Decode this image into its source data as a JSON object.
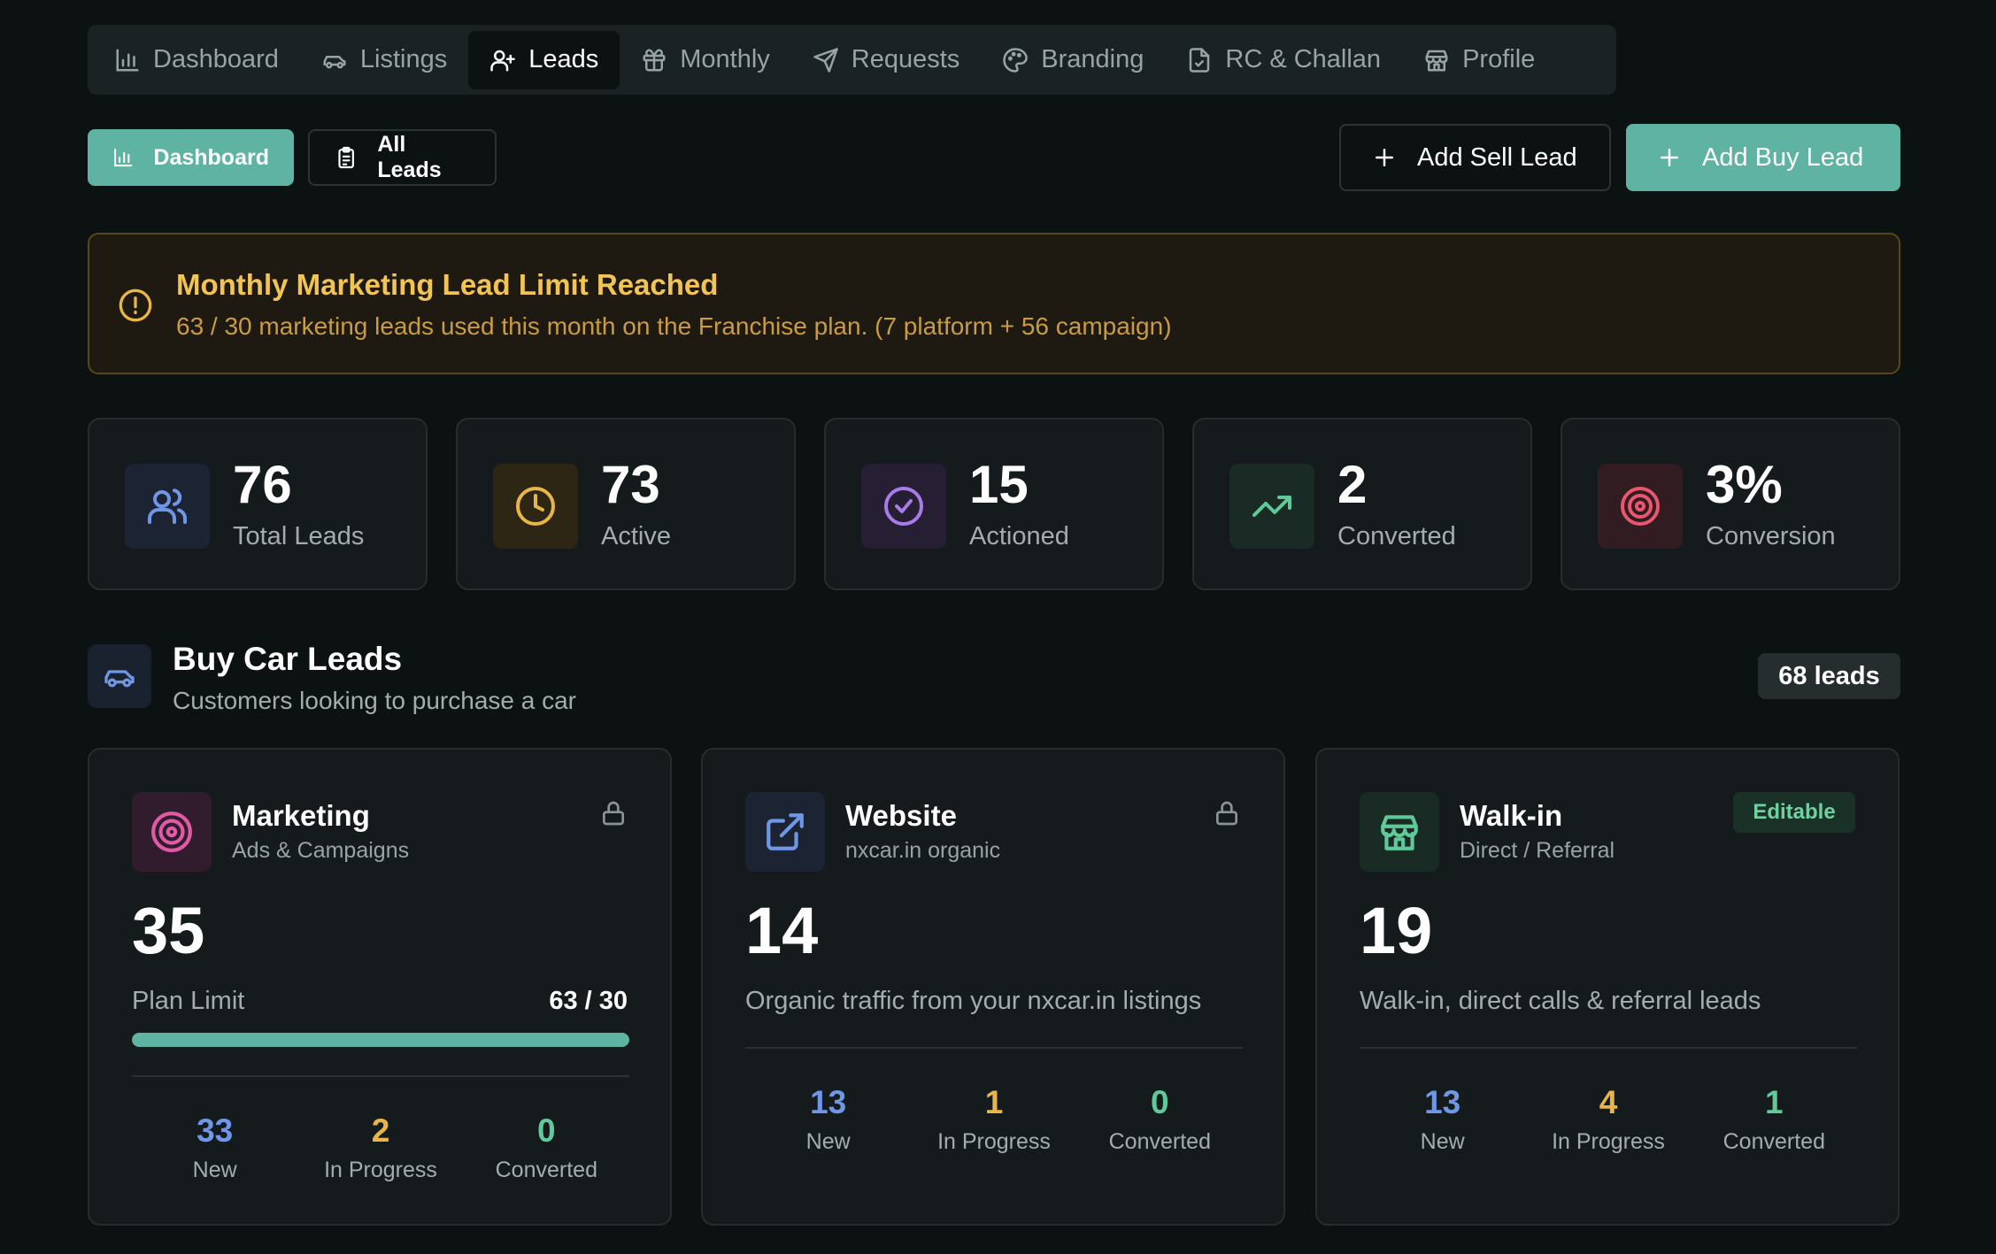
{
  "nav": {
    "tabs": [
      {
        "label": "Dashboard",
        "icon": "bar-chart-icon",
        "active": false
      },
      {
        "label": "Listings",
        "icon": "car-icon",
        "active": false
      },
      {
        "label": "Leads",
        "icon": "user-plus-icon",
        "active": true
      },
      {
        "label": "Monthly",
        "icon": "gift-icon",
        "active": false
      },
      {
        "label": "Requests",
        "icon": "send-icon",
        "active": false
      },
      {
        "label": "Branding",
        "icon": "palette-icon",
        "active": false
      },
      {
        "label": "RC & Challan",
        "icon": "file-check-icon",
        "active": false
      },
      {
        "label": "Profile",
        "icon": "store-icon",
        "active": false
      }
    ]
  },
  "toolbar": {
    "dashboard_label": "Dashboard",
    "all_leads_label": "All Leads",
    "add_sell_label": "Add Sell Lead",
    "add_buy_label": "Add Buy Lead"
  },
  "alert": {
    "title": "Monthly Marketing Lead Limit Reached",
    "text": "63 / 30 marketing leads used this month on the Franchise plan. (7 platform + 56 campaign)"
  },
  "stats": [
    {
      "value": "76",
      "label": "Total Leads",
      "icon": "users-icon",
      "color": "#6f97e6"
    },
    {
      "value": "73",
      "label": "Active",
      "icon": "clock-icon",
      "color": "#e8b546"
    },
    {
      "value": "15",
      "label": "Actioned",
      "icon": "check-circle-icon",
      "color": "#a77be8"
    },
    {
      "value": "2",
      "label": "Converted",
      "icon": "trending-up-icon",
      "color": "#5fc99a"
    },
    {
      "value": "3%",
      "label": "Conversion",
      "icon": "target-icon",
      "color": "#e8566f"
    }
  ],
  "section": {
    "title": "Buy Car Leads",
    "subtitle": "Customers looking to purchase a car",
    "badge": "68 leads"
  },
  "cards": {
    "marketing": {
      "title": "Marketing",
      "subtitle": "Ads & Campaigns",
      "count": "35",
      "plan_label": "Plan Limit",
      "plan_value": "63 / 30",
      "progress_fraction": 1.0,
      "new": "33",
      "new_label": "New",
      "in_progress": "2",
      "in_progress_label": "In Progress",
      "converted": "0",
      "converted_label": "Converted"
    },
    "website": {
      "title": "Website",
      "subtitle": "nxcar.in organic",
      "count": "14",
      "description": "Organic traffic from your nxcar.in listings",
      "new": "13",
      "new_label": "New",
      "in_progress": "1",
      "in_progress_label": "In Progress",
      "converted": "0",
      "converted_label": "Converted"
    },
    "walkin": {
      "title": "Walk-in",
      "subtitle": "Direct / Referral",
      "badge": "Editable",
      "count": "19",
      "description": "Walk-in, direct calls & referral leads",
      "new": "13",
      "new_label": "New",
      "in_progress": "4",
      "in_progress_label": "In Progress",
      "converted": "1",
      "converted_label": "Converted"
    }
  }
}
